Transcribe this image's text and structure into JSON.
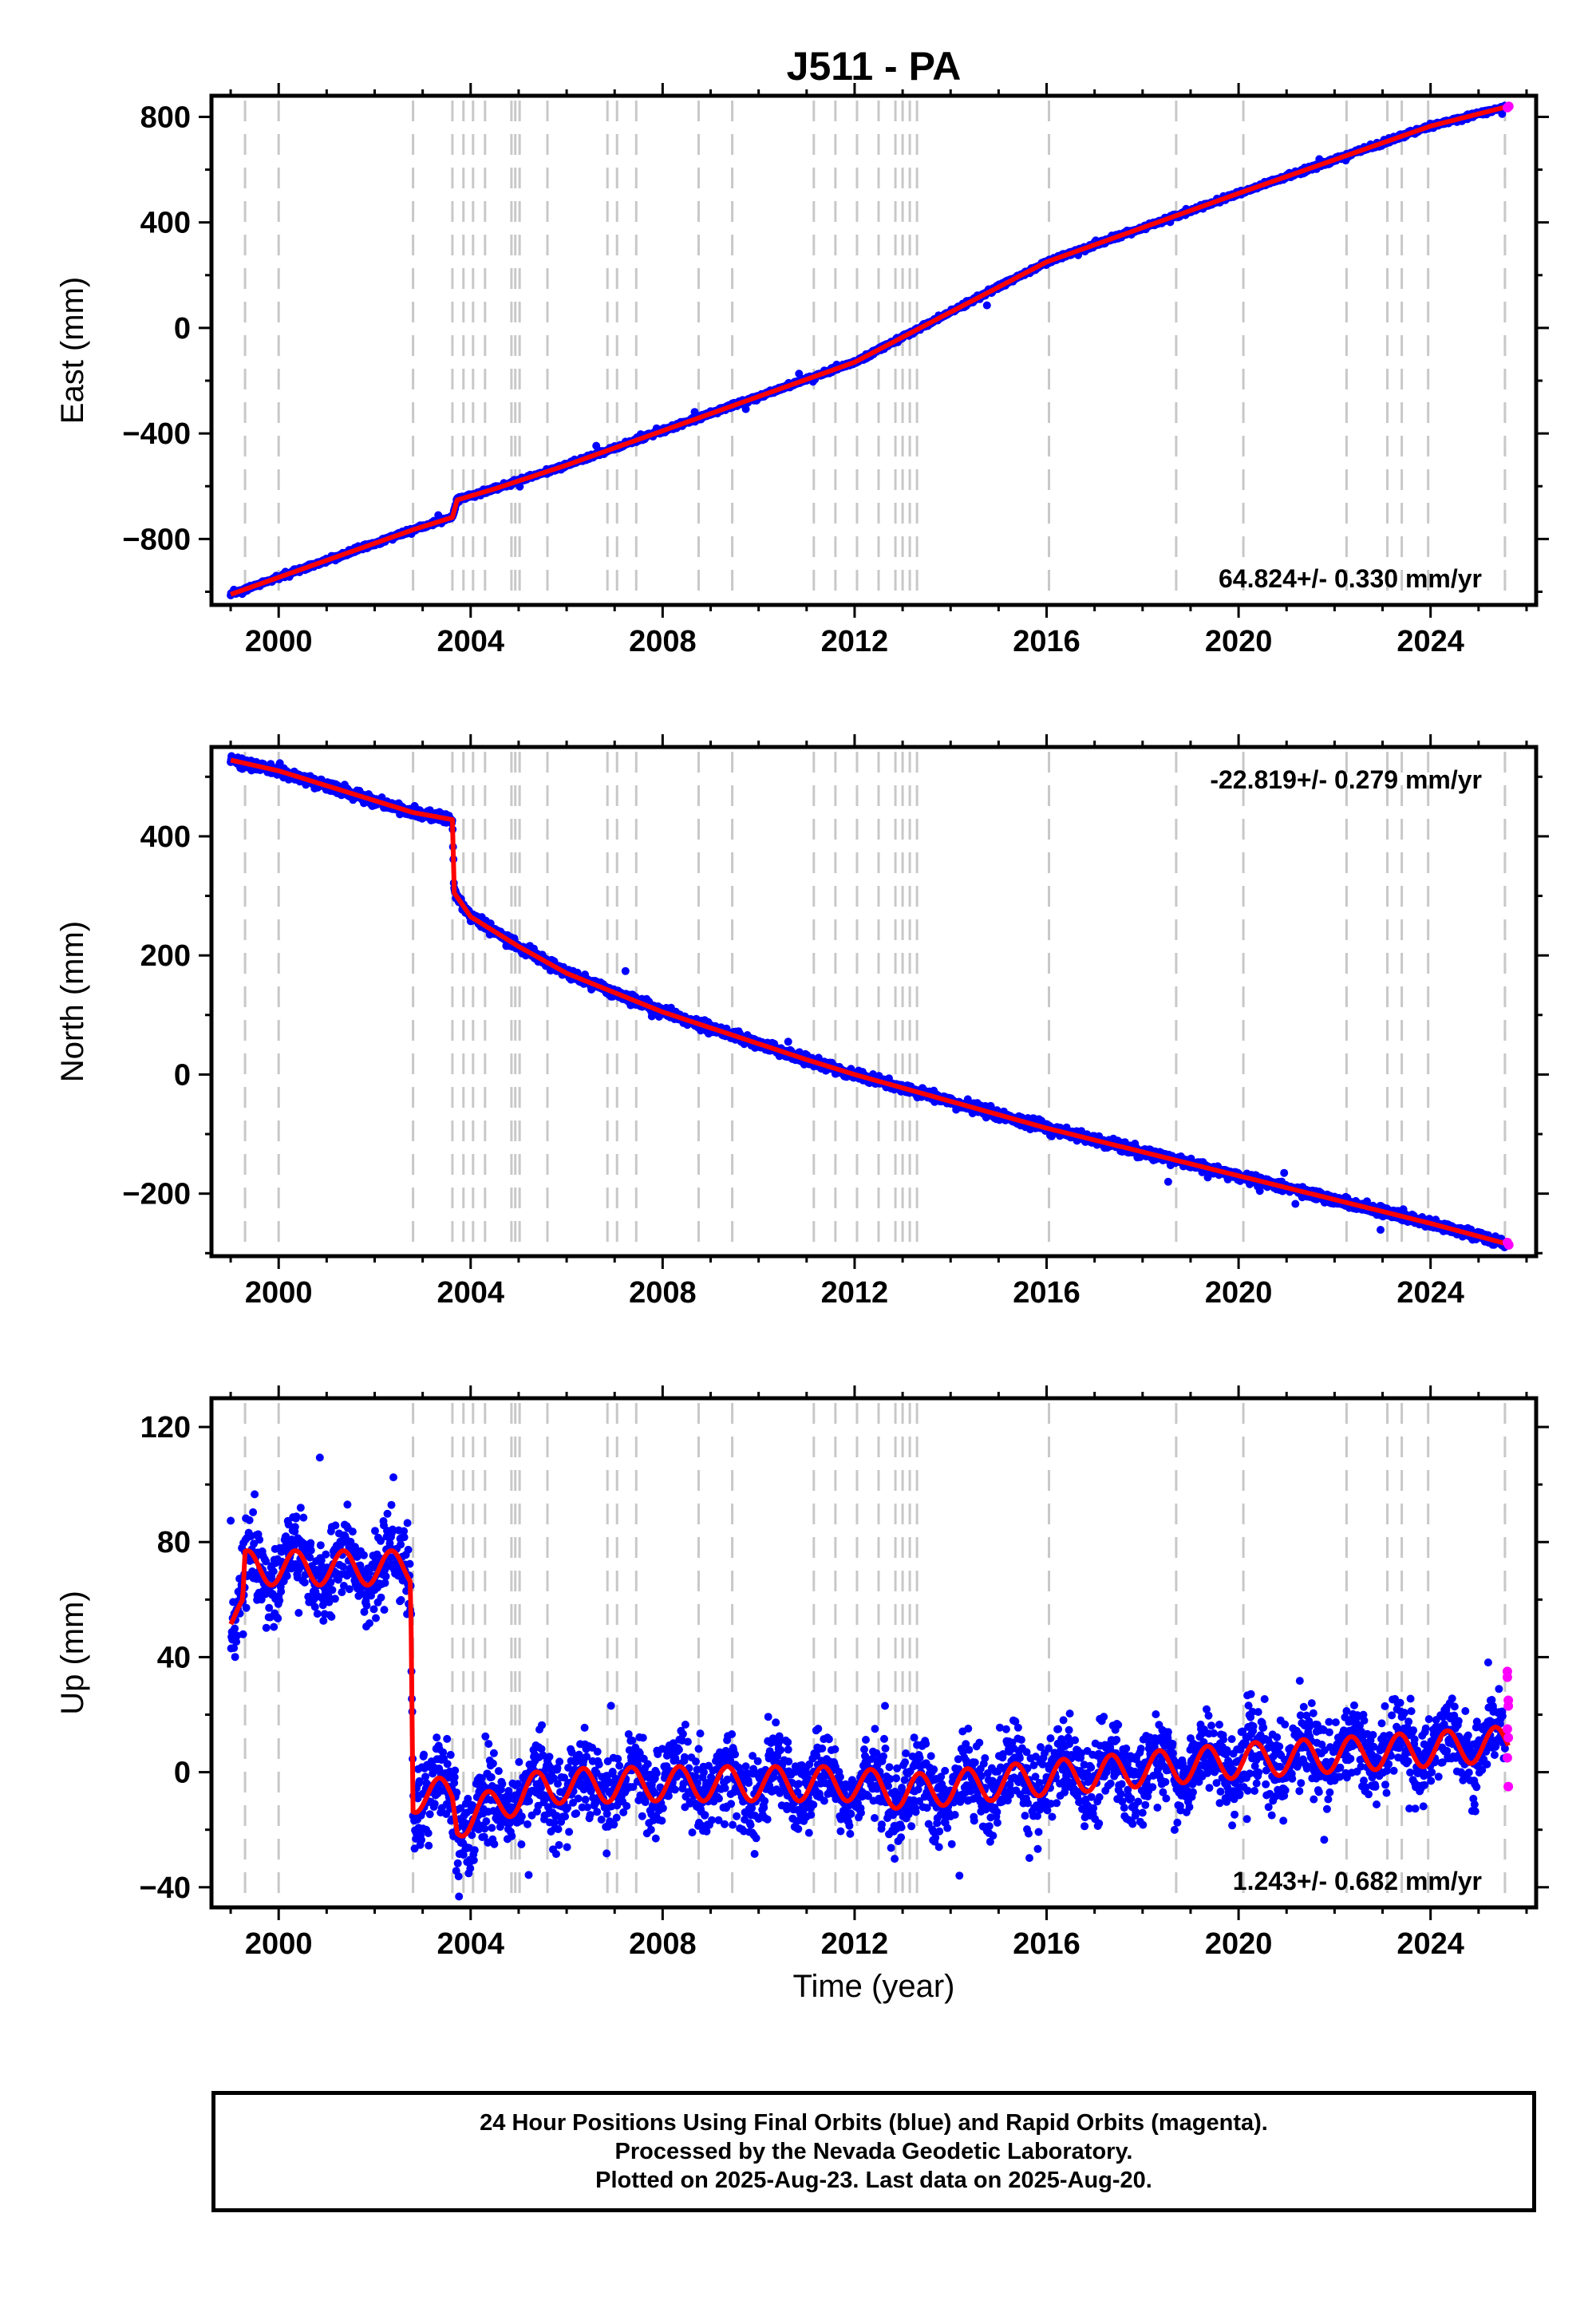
{
  "title": "J511 - PA",
  "colors": {
    "final_orbits": "#0000ff",
    "rapid_orbits": "#ff00ff",
    "model_fit": "#ff0000",
    "event_lines": "#c8c8c8"
  },
  "footer": {
    "line1": "24 Hour Positions Using Final Orbits (blue) and Rapid Orbits (magenta).",
    "line2": "Processed by the Nevada Geodetic Laboratory.",
    "line3": "Plotted on 2025-Aug-23. Last data on 2025-Aug-20."
  },
  "chart_data": [
    {
      "type": "scatter",
      "component": "east",
      "ylabel": "East (mm)",
      "xlabel": "",
      "xlim": [
        1998.6,
        2026.2
      ],
      "ylim": [
        -1050,
        880
      ],
      "yticks": [
        -800,
        -400,
        0,
        400,
        800
      ],
      "xticks": [
        2000,
        2004,
        2008,
        2012,
        2016,
        2020,
        2024
      ],
      "rate_label": "64.824+/- 0.330 mm/yr",
      "rate_position": "bottom-right",
      "grid": false,
      "model_points": [
        [
          1999.0,
          -1010
        ],
        [
          2002.8,
          -765
        ],
        [
          2003.62,
          -718
        ],
        [
          2003.72,
          -652
        ],
        [
          2004.5,
          -610
        ],
        [
          2006,
          -520
        ],
        [
          2008,
          -390
        ],
        [
          2012,
          -130
        ],
        [
          2016,
          250
        ],
        [
          2020,
          510
        ],
        [
          2024,
          765
        ],
        [
          2025.62,
          840
        ]
      ],
      "noise_sd": 4,
      "rapid_points": [
        [
          2025.6,
          835
        ],
        [
          2025.63,
          840
        ]
      ]
    },
    {
      "type": "scatter",
      "component": "north",
      "ylabel": "North (mm)",
      "xlabel": "",
      "xlim": [
        1998.6,
        2026.2
      ],
      "ylim": [
        -305,
        550
      ],
      "yticks": [
        -200,
        0,
        200,
        400
      ],
      "xticks": [
        2000,
        2004,
        2008,
        2012,
        2016,
        2020,
        2024
      ],
      "rate_label": "-22.819+/- 0.279 mm/yr",
      "rate_position": "top-right",
      "grid": false,
      "model_points": [
        [
          1999.0,
          528
        ],
        [
          2000,
          510
        ],
        [
          2002.8,
          440
        ],
        [
          2003.62,
          428
        ],
        [
          2003.66,
          305
        ],
        [
          2004,
          265
        ],
        [
          2005,
          215
        ],
        [
          2006,
          170
        ],
        [
          2008,
          105
        ],
        [
          2011,
          25
        ],
        [
          2012,
          0
        ],
        [
          2014,
          -45
        ],
        [
          2016,
          -90
        ],
        [
          2020,
          -170
        ],
        [
          2024,
          -250
        ],
        [
          2025.62,
          -285
        ]
      ],
      "noise_sd": 4,
      "rapid_points": [
        [
          2025.6,
          -282
        ],
        [
          2025.63,
          -286
        ]
      ]
    },
    {
      "type": "scatter",
      "component": "up",
      "ylabel": "Up (mm)",
      "xlabel": "Time (year)",
      "xlim": [
        1998.6,
        2026.2
      ],
      "ylim": [
        -47,
        130
      ],
      "yticks": [
        -40,
        0,
        40,
        80,
        120
      ],
      "xticks": [
        2000,
        2004,
        2008,
        2012,
        2016,
        2020,
        2024
      ],
      "rate_label": "1.243+/- 0.682 mm/yr",
      "rate_position": "bottom-right",
      "grid": false,
      "model_points": [
        [
          1999.0,
          55
        ],
        [
          1999.25,
          55
        ],
        [
          1999.3,
          71
        ],
        [
          2002.75,
          71
        ],
        [
          2002.8,
          -8
        ],
        [
          2003.62,
          -8
        ],
        [
          2003.72,
          -17
        ],
        [
          2005.5,
          -5
        ],
        [
          2008,
          -4
        ],
        [
          2012,
          -4
        ],
        [
          2013,
          -7
        ],
        [
          2016,
          -2
        ],
        [
          2020,
          4
        ],
        [
          2024,
          8
        ],
        [
          2025.62,
          10
        ]
      ],
      "seasonal_amplitude_mm": 6,
      "noise_sd": 7,
      "rapid_points": [
        [
          2025.6,
          35
        ],
        [
          2025.6,
          33
        ],
        [
          2025.62,
          25
        ],
        [
          2025.62,
          23
        ],
        [
          2025.6,
          15
        ],
        [
          2025.62,
          12
        ],
        [
          2025.6,
          5
        ],
        [
          2025.62,
          -5
        ]
      ]
    }
  ],
  "event_lines": [
    1999.3,
    2000.0,
    2002.8,
    2003.62,
    2003.85,
    2004.05,
    2004.3,
    2004.85,
    2004.93,
    2005.02,
    2005.6,
    2006.85,
    2007.05,
    2007.45,
    2008.75,
    2009.45,
    2011.15,
    2011.6,
    2012.05,
    2012.5,
    2012.85,
    2013.0,
    2013.15,
    2013.3,
    2016.05,
    2018.7,
    2020.1,
    2022.25,
    2023.1,
    2023.4,
    2023.95,
    2025.55
  ]
}
